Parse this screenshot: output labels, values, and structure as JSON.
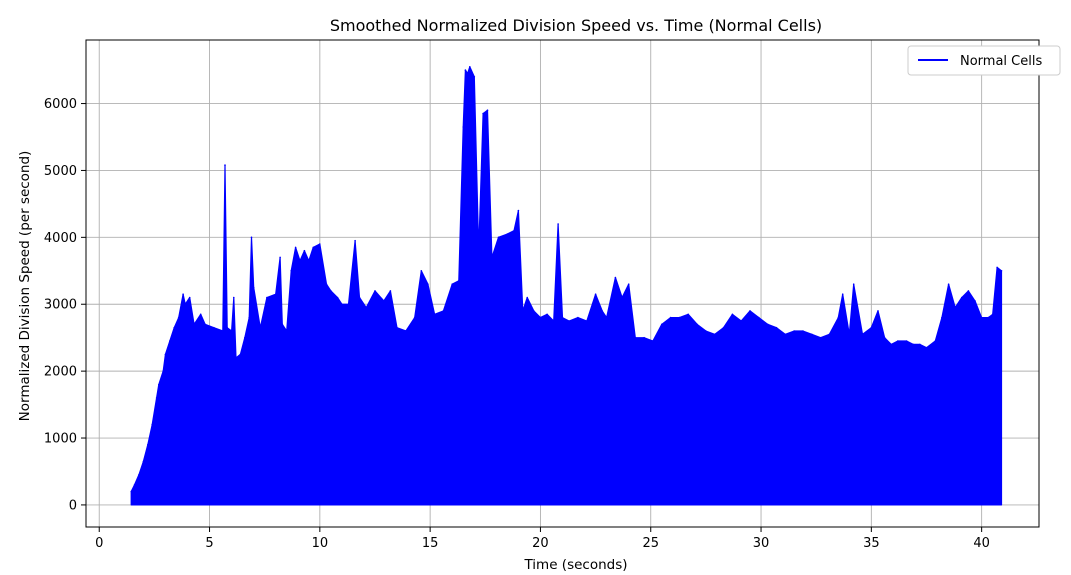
{
  "chart_data": {
    "type": "area",
    "title": "Smoothed Normalized Division Speed vs. Time (Normal Cells)",
    "xlabel": "Time (seconds)",
    "ylabel": "Normalized Division Speed (per second)",
    "xlim": [
      -0.6,
      42.6
    ],
    "ylim": [
      -330,
      6950
    ],
    "xticks": [
      0,
      5,
      10,
      15,
      20,
      25,
      30,
      35,
      40
    ],
    "yticks": [
      0,
      1000,
      2000,
      3000,
      4000,
      5000,
      6000
    ],
    "grid": true,
    "legend_position": "top-right",
    "series": [
      {
        "name": "Normal Cells",
        "color": "#0000ff",
        "x": [
          1.45,
          1.6,
          1.8,
          2.0,
          2.2,
          2.4,
          2.6,
          2.7,
          2.9,
          3.0,
          3.2,
          3.4,
          3.6,
          3.8,
          3.9,
          4.1,
          4.3,
          4.6,
          4.8,
          5.2,
          5.6,
          5.7,
          5.8,
          6.0,
          6.1,
          6.2,
          6.4,
          6.6,
          6.8,
          6.9,
          7.0,
          7.3,
          7.6,
          8.0,
          8.2,
          8.3,
          8.5,
          8.7,
          8.9,
          9.1,
          9.3,
          9.5,
          9.7,
          10.0,
          10.3,
          10.5,
          10.8,
          11.0,
          11.3,
          11.6,
          11.8,
          12.1,
          12.5,
          12.9,
          13.2,
          13.5,
          13.9,
          14.3,
          14.6,
          14.9,
          15.2,
          15.6,
          16.0,
          16.3,
          16.5,
          16.6,
          16.7,
          16.8,
          17.0,
          17.2,
          17.4,
          17.6,
          17.8,
          18.1,
          18.5,
          18.8,
          19.0,
          19.2,
          19.4,
          19.7,
          20.0,
          20.3,
          20.6,
          20.8,
          21.0,
          21.3,
          21.7,
          22.1,
          22.5,
          22.8,
          23.0,
          23.4,
          23.7,
          24.0,
          24.3,
          24.7,
          25.1,
          25.5,
          25.9,
          26.3,
          26.7,
          27.1,
          27.5,
          27.9,
          28.3,
          28.7,
          29.1,
          29.5,
          29.9,
          30.3,
          30.7,
          31.1,
          31.5,
          31.9,
          32.3,
          32.7,
          33.1,
          33.5,
          33.7,
          34.0,
          34.2,
          34.6,
          35.0,
          35.3,
          35.6,
          35.9,
          36.2,
          36.6,
          36.9,
          37.2,
          37.5,
          37.9,
          38.2,
          38.5,
          38.8,
          39.1,
          39.4,
          39.7,
          40.0,
          40.3,
          40.5,
          40.7,
          40.9
        ],
        "y": [
          200,
          300,
          450,
          650,
          900,
          1200,
          1600,
          1800,
          2000,
          2250,
          2450,
          2650,
          2800,
          3150,
          3000,
          3100,
          2700,
          2850,
          2700,
          2650,
          2600,
          5080,
          2650,
          2600,
          3100,
          2200,
          2250,
          2500,
          2800,
          4000,
          3250,
          2650,
          3100,
          3150,
          3700,
          2700,
          2600,
          3500,
          3850,
          3650,
          3800,
          3650,
          3850,
          3900,
          3300,
          3200,
          3100,
          3000,
          3000,
          3950,
          3100,
          2950,
          3200,
          3050,
          3200,
          2650,
          2600,
          2800,
          3500,
          3300,
          2850,
          2900,
          3300,
          3350,
          5650,
          6500,
          6450,
          6550,
          6400,
          3800,
          5850,
          5900,
          3700,
          4000,
          4050,
          4100,
          4400,
          2900,
          3100,
          2900,
          2800,
          2850,
          2750,
          4200,
          2800,
          2750,
          2800,
          2750,
          3150,
          2900,
          2800,
          3400,
          3100,
          3300,
          2500,
          2500,
          2450,
          2700,
          2800,
          2800,
          2850,
          2700,
          2600,
          2550,
          2650,
          2850,
          2750,
          2900,
          2800,
          2700,
          2650,
          2550,
          2600,
          2600,
          2550,
          2500,
          2550,
          2800,
          3150,
          2550,
          3300,
          2550,
          2650,
          2900,
          2500,
          2400,
          2450,
          2450,
          2400,
          2400,
          2350,
          2450,
          2800,
          3300,
          2950,
          3100,
          3200,
          3050,
          2800,
          2800,
          2850,
          3550,
          3500
        ]
      }
    ]
  }
}
